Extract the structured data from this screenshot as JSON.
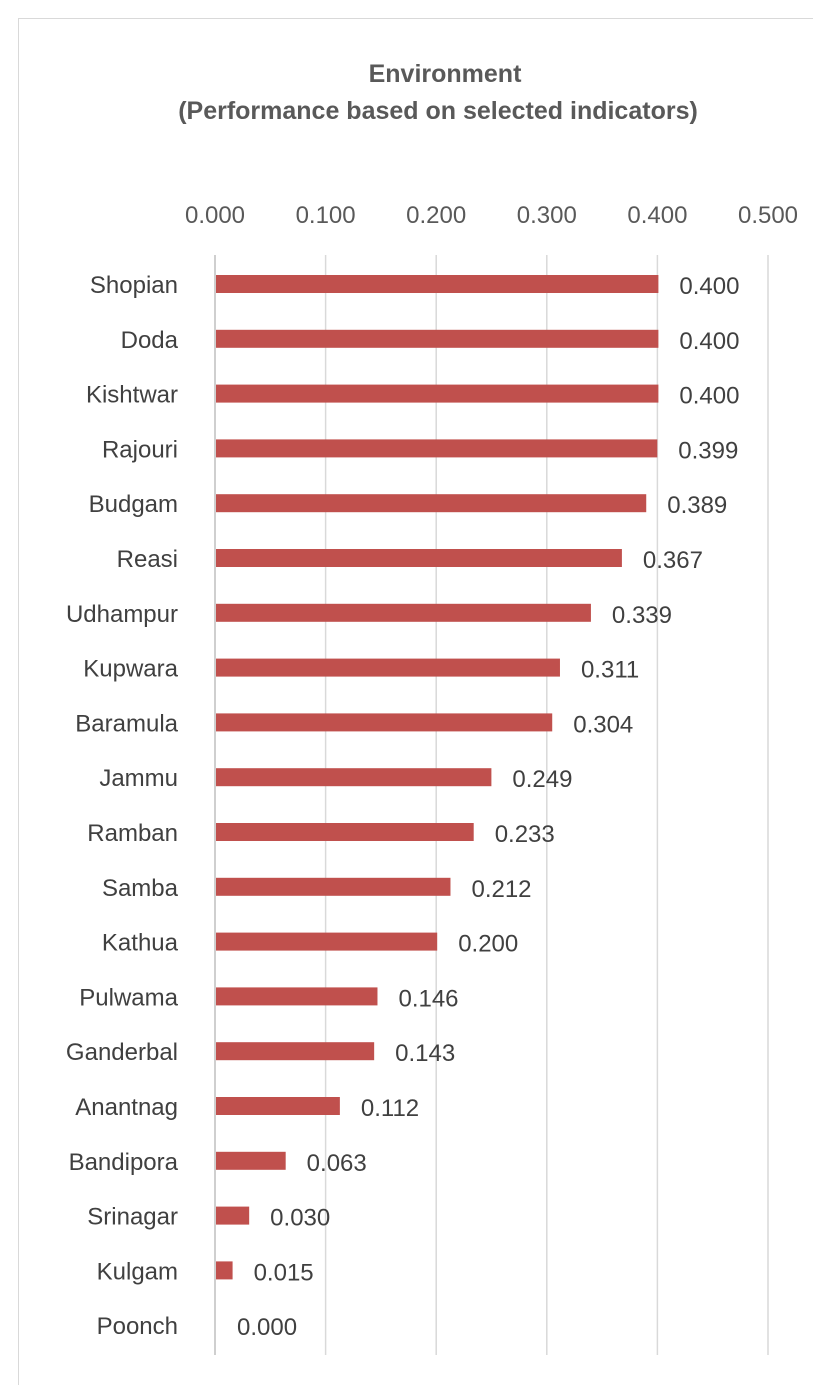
{
  "chart_data": {
    "type": "bar",
    "orientation": "horizontal",
    "title": "Environment",
    "subtitle": "(Performance based on selected indicators)",
    "xlabel": "",
    "ylabel": "",
    "xlim": [
      0,
      0.5
    ],
    "tick_labels": [
      "0.000",
      "0.100",
      "0.200",
      "0.300",
      "0.400",
      "0.500"
    ],
    "tick_values": [
      0,
      0.1,
      0.2,
      0.3,
      0.4,
      0.5
    ],
    "axis_position": "top",
    "grid": true,
    "legend": "none",
    "bar_color": "#c0504d",
    "categories": [
      "Shopian",
      "Doda",
      "Kishtwar",
      "Rajouri",
      "Budgam",
      "Reasi",
      "Udhampur",
      "Kupwara",
      "Baramula",
      "Jammu",
      "Ramban",
      "Samba",
      "Kathua",
      "Pulwama",
      "Ganderbal",
      "Anantnag",
      "Bandipora",
      "Srinagar",
      "Kulgam",
      "Poonch"
    ],
    "values": [
      0.4,
      0.4,
      0.4,
      0.399,
      0.389,
      0.367,
      0.339,
      0.311,
      0.304,
      0.249,
      0.233,
      0.212,
      0.2,
      0.146,
      0.143,
      0.112,
      0.063,
      0.03,
      0.015,
      0.0
    ],
    "value_labels": [
      "0.400",
      "0.400",
      "0.400",
      "0.399",
      "0.389",
      "0.367",
      "0.339",
      "0.311",
      "0.304",
      "0.249",
      "0.233",
      "0.212",
      "0.200",
      "0.146",
      "0.143",
      "0.112",
      "0.063",
      "0.030",
      "0.015",
      "0.000"
    ]
  }
}
